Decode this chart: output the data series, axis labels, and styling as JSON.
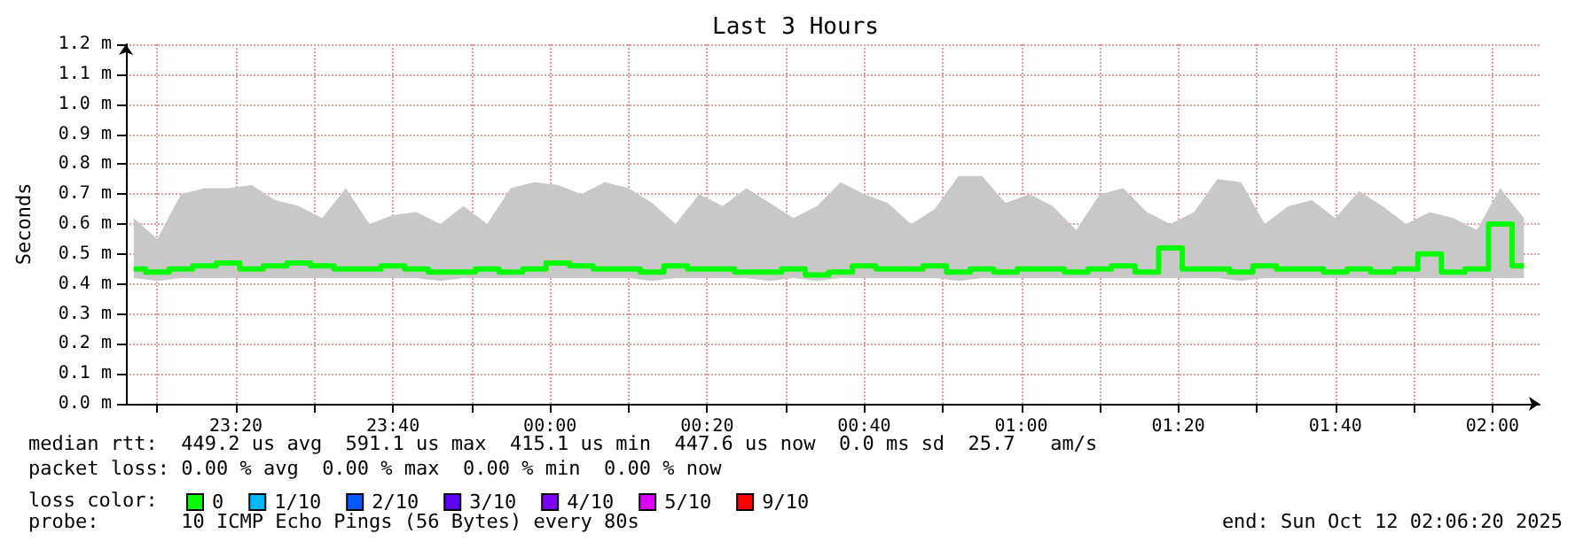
{
  "chart_data": {
    "type": "step",
    "title": "Last 3 Hours",
    "ylabel": "Seconds",
    "legend_title": "loss color:",
    "legend": "bottom left",
    "grid": true,
    "annotations": [
      "median rtt:  449.2 us avg  591.1 us max  415.1 us min  447.6 us now  0.0 ms sd  25.7   am/s",
      "packet loss: 0.00 % avg  0.00 % max  0.00 % min  0.00 % now",
      "probe:       10 ICMP Echo Pings (56 Bytes) every 80s",
      "end: Sun Oct 12 02:06:20 2025"
    ],
    "xlim": [
      "2025-10-11T23:06",
      "2025-10-12T02:06"
    ],
    "xticks": [
      {
        "value": "2025-10-11T23:10",
        "label": null
      },
      {
        "value": "2025-10-11T23:20",
        "label": "23:20"
      },
      {
        "value": "2025-10-11T23:30",
        "label": null
      },
      {
        "value": "2025-10-11T23:40",
        "label": "23:40"
      },
      {
        "value": "2025-10-11T23:50",
        "label": null
      },
      {
        "value": "2025-10-12T00:00",
        "label": "00:00"
      },
      {
        "value": "2025-10-12T00:10",
        "label": null
      },
      {
        "value": "2025-10-12T00:20",
        "label": "00:20"
      },
      {
        "value": "2025-10-12T00:30",
        "label": null
      },
      {
        "value": "2025-10-12T00:40",
        "label": "00:40"
      },
      {
        "value": "2025-10-12T00:50",
        "label": null
      },
      {
        "value": "2025-10-12T01:00",
        "label": "01:00"
      },
      {
        "value": "2025-10-12T01:10",
        "label": null
      },
      {
        "value": "2025-10-12T01:20",
        "label": "01:20"
      },
      {
        "value": "2025-10-12T01:30",
        "label": null
      },
      {
        "value": "2025-10-12T01:40",
        "label": "01:40"
      },
      {
        "value": "2025-10-12T01:50",
        "label": null
      },
      {
        "value": "2025-10-12T02:00",
        "label": "02:00"
      }
    ],
    "ylim": [
      0,
      1.2
    ],
    "yticks": [
      {
        "value": 0,
        "label": "0.0 m"
      },
      {
        "value": 0.1,
        "label": "0.1 m"
      },
      {
        "value": 0.2,
        "label": "0.2 m"
      },
      {
        "value": 0.3,
        "label": "0.3 m"
      },
      {
        "value": 0.4,
        "label": "0.4 m"
      },
      {
        "value": 0.5,
        "label": "0.5 m"
      },
      {
        "value": 0.6,
        "label": "0.6 m"
      },
      {
        "value": 0.7,
        "label": "0.7 m"
      },
      {
        "value": 0.8,
        "label": "0.8 m"
      },
      {
        "value": 0.9,
        "label": "0.9 m"
      },
      {
        "value": 1.0,
        "label": "1.0 m"
      },
      {
        "value": 1.1,
        "label": "1.1 m"
      },
      {
        "value": 1.2,
        "label": "1.2 m"
      }
    ],
    "x": [
      "2025-10-11T23:07",
      "2025-10-11T23:10",
      "2025-10-11T23:13",
      "2025-10-11T23:16",
      "2025-10-11T23:19",
      "2025-10-11T23:22",
      "2025-10-11T23:25",
      "2025-10-11T23:28",
      "2025-10-11T23:31",
      "2025-10-11T23:34",
      "2025-10-11T23:37",
      "2025-10-11T23:40",
      "2025-10-11T23:43",
      "2025-10-11T23:46",
      "2025-10-11T23:49",
      "2025-10-11T23:52",
      "2025-10-11T23:55",
      "2025-10-11T23:58",
      "2025-10-12T00:01",
      "2025-10-12T00:04",
      "2025-10-12T00:07",
      "2025-10-12T00:10",
      "2025-10-12T00:13",
      "2025-10-12T00:16",
      "2025-10-12T00:19",
      "2025-10-12T00:22",
      "2025-10-12T00:25",
      "2025-10-12T00:28",
      "2025-10-12T00:31",
      "2025-10-12T00:34",
      "2025-10-12T00:37",
      "2025-10-12T00:40",
      "2025-10-12T00:43",
      "2025-10-12T00:46",
      "2025-10-12T00:49",
      "2025-10-12T00:52",
      "2025-10-12T00:55",
      "2025-10-12T00:58",
      "2025-10-12T01:01",
      "2025-10-12T01:04",
      "2025-10-12T01:07",
      "2025-10-12T01:10",
      "2025-10-12T01:13",
      "2025-10-12T01:16",
      "2025-10-12T01:19",
      "2025-10-12T01:22",
      "2025-10-12T01:25",
      "2025-10-12T01:28",
      "2025-10-12T01:31",
      "2025-10-12T01:34",
      "2025-10-12T01:37",
      "2025-10-12T01:40",
      "2025-10-12T01:43",
      "2025-10-12T01:46",
      "2025-10-12T01:49",
      "2025-10-12T01:52",
      "2025-10-12T01:55",
      "2025-10-12T01:58",
      "2025-10-12T02:01",
      "2025-10-12T02:04"
    ],
    "series": [
      {
        "name": "0",
        "color": "#00ff00",
        "values": [
          0.45,
          0.44,
          0.45,
          0.46,
          0.47,
          0.45,
          0.46,
          0.47,
          0.46,
          0.45,
          0.45,
          0.46,
          0.45,
          0.44,
          0.44,
          0.45,
          0.44,
          0.45,
          0.47,
          0.46,
          0.45,
          0.45,
          0.44,
          0.46,
          0.45,
          0.45,
          0.44,
          0.44,
          0.45,
          0.43,
          0.44,
          0.46,
          0.45,
          0.45,
          0.46,
          0.44,
          0.45,
          0.44,
          0.45,
          0.45,
          0.44,
          0.45,
          0.46,
          0.44,
          0.52,
          0.45,
          0.45,
          0.44,
          0.46,
          0.45,
          0.45,
          0.44,
          0.45,
          0.44,
          0.45,
          0.5,
          0.44,
          0.45,
          0.6,
          0.46
        ],
        "lower": [
          0.42,
          0.41,
          0.42,
          0.42,
          0.42,
          0.42,
          0.42,
          0.42,
          0.42,
          0.42,
          0.42,
          0.42,
          0.42,
          0.41,
          0.42,
          0.42,
          0.42,
          0.42,
          0.42,
          0.42,
          0.42,
          0.42,
          0.41,
          0.42,
          0.42,
          0.42,
          0.42,
          0.41,
          0.42,
          0.41,
          0.42,
          0.42,
          0.42,
          0.42,
          0.42,
          0.41,
          0.42,
          0.42,
          0.42,
          0.42,
          0.42,
          0.42,
          0.42,
          0.42,
          0.42,
          0.42,
          0.42,
          0.41,
          0.42,
          0.42,
          0.42,
          0.42,
          0.42,
          0.42,
          0.42,
          0.42,
          0.42,
          0.42,
          0.42,
          0.42
        ],
        "upper": [
          0.62,
          0.55,
          0.7,
          0.72,
          0.72,
          0.73,
          0.68,
          0.66,
          0.62,
          0.72,
          0.6,
          0.63,
          0.64,
          0.6,
          0.66,
          0.6,
          0.72,
          0.74,
          0.73,
          0.7,
          0.74,
          0.72,
          0.67,
          0.6,
          0.7,
          0.66,
          0.72,
          0.67,
          0.62,
          0.66,
          0.74,
          0.7,
          0.67,
          0.6,
          0.65,
          0.76,
          0.76,
          0.67,
          0.7,
          0.66,
          0.58,
          0.7,
          0.72,
          0.64,
          0.6,
          0.64,
          0.75,
          0.74,
          0.6,
          0.66,
          0.68,
          0.62,
          0.71,
          0.66,
          0.6,
          0.64,
          0.62,
          0.58,
          0.72,
          0.62
        ]
      },
      {
        "name": "1/10",
        "color": "#00b8ff",
        "values": [
          null,
          null,
          null,
          null,
          null,
          null,
          null,
          null,
          null,
          null,
          null,
          null,
          null,
          null,
          null,
          null,
          null,
          null,
          null,
          null,
          null,
          null,
          null,
          null,
          null,
          null,
          null,
          null,
          null,
          null,
          null,
          null,
          null,
          null,
          null,
          null,
          null,
          null,
          null,
          null,
          null,
          null,
          null,
          null,
          null,
          null,
          null,
          null,
          null,
          null,
          null,
          null,
          null,
          null,
          null,
          null,
          null,
          null,
          null,
          null
        ]
      },
      {
        "name": "2/10",
        "color": "#0059ff",
        "values": [
          null,
          null,
          null,
          null,
          null,
          null,
          null,
          null,
          null,
          null,
          null,
          null,
          null,
          null,
          null,
          null,
          null,
          null,
          null,
          null,
          null,
          null,
          null,
          null,
          null,
          null,
          null,
          null,
          null,
          null,
          null,
          null,
          null,
          null,
          null,
          null,
          null,
          null,
          null,
          null,
          null,
          null,
          null,
          null,
          null,
          null,
          null,
          null,
          null,
          null,
          null,
          null,
          null,
          null,
          null,
          null,
          null,
          null,
          null,
          null
        ]
      },
      {
        "name": "3/10",
        "color": "#5e00ff",
        "values": [
          null,
          null,
          null,
          null,
          null,
          null,
          null,
          null,
          null,
          null,
          null,
          null,
          null,
          null,
          null,
          null,
          null,
          null,
          null,
          null,
          null,
          null,
          null,
          null,
          null,
          null,
          null,
          null,
          null,
          null,
          null,
          null,
          null,
          null,
          null,
          null,
          null,
          null,
          null,
          null,
          null,
          null,
          null,
          null,
          null,
          null,
          null,
          null,
          null,
          null,
          null,
          null,
          null,
          null,
          null,
          null,
          null,
          null,
          null,
          null
        ]
      },
      {
        "name": "4/10",
        "color": "#7e00ff",
        "values": [
          null,
          null,
          null,
          null,
          null,
          null,
          null,
          null,
          null,
          null,
          null,
          null,
          null,
          null,
          null,
          null,
          null,
          null,
          null,
          null,
          null,
          null,
          null,
          null,
          null,
          null,
          null,
          null,
          null,
          null,
          null,
          null,
          null,
          null,
          null,
          null,
          null,
          null,
          null,
          null,
          null,
          null,
          null,
          null,
          null,
          null,
          null,
          null,
          null,
          null,
          null,
          null,
          null,
          null,
          null,
          null,
          null,
          null,
          null,
          null
        ]
      },
      {
        "name": "5/10",
        "color": "#dd00ff",
        "values": [
          null,
          null,
          null,
          null,
          null,
          null,
          null,
          null,
          null,
          null,
          null,
          null,
          null,
          null,
          null,
          null,
          null,
          null,
          null,
          null,
          null,
          null,
          null,
          null,
          null,
          null,
          null,
          null,
          null,
          null,
          null,
          null,
          null,
          null,
          null,
          null,
          null,
          null,
          null,
          null,
          null,
          null,
          null,
          null,
          null,
          null,
          null,
          null,
          null,
          null,
          null,
          null,
          null,
          null,
          null,
          null,
          null,
          null,
          null,
          null
        ]
      },
      {
        "name": "9/10",
        "color": "#ff0000",
        "values": [
          null,
          null,
          null,
          null,
          null,
          null,
          null,
          null,
          null,
          null,
          null,
          null,
          null,
          null,
          null,
          null,
          null,
          null,
          null,
          null,
          null,
          null,
          null,
          null,
          null,
          null,
          null,
          null,
          null,
          null,
          null,
          null,
          null,
          null,
          null,
          null,
          null,
          null,
          null,
          null,
          null,
          null,
          null,
          null,
          null,
          null,
          null,
          null,
          null,
          null,
          null,
          null,
          null,
          null,
          null,
          null,
          null,
          null,
          null,
          null
        ]
      }
    ]
  }
}
